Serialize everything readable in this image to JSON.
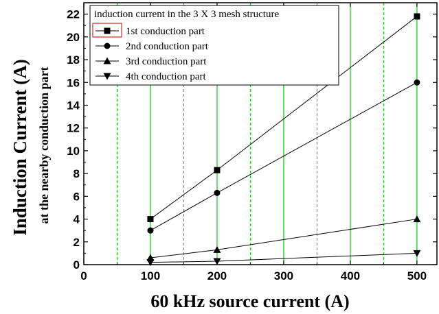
{
  "chart_data": {
    "type": "line",
    "legend_title": "induction current in the 3 X 3 mesh structure",
    "xlabel": "60 kHz source current (A)",
    "ylabel": "Induction Current (A)",
    "ylabel2": "at the nearby conduction part",
    "xlim": [
      0,
      530
    ],
    "ylim": [
      0,
      23
    ],
    "xticks": [
      0,
      100,
      200,
      300,
      400,
      500
    ],
    "xtick_labels": [
      "0",
      "100",
      "200",
      "300",
      "400",
      "500"
    ],
    "yticks": [
      0,
      2,
      4,
      6,
      8,
      10,
      12,
      14,
      16,
      18,
      20,
      22
    ],
    "ytick_labels": [
      "0",
      "2",
      "4",
      "6",
      "8",
      "10",
      "12",
      "14",
      "16",
      "18",
      "20",
      "22"
    ],
    "grid_major_x": [
      100,
      200,
      300,
      400,
      500
    ],
    "grid_minor_x": [
      50,
      150,
      250,
      350,
      450
    ],
    "grid_color": "#00cc00",
    "legend_placement": "top-left",
    "x": [
      100,
      200,
      500
    ],
    "series": [
      {
        "name": "1st conduction part",
        "marker": "square",
        "values": [
          4.0,
          8.3,
          21.8
        ]
      },
      {
        "name": "2nd conduction part",
        "marker": "circle",
        "values": [
          3.0,
          6.3,
          16.0
        ]
      },
      {
        "name": "3rd conduction part",
        "marker": "triangle-up",
        "values": [
          0.6,
          1.3,
          4.0
        ]
      },
      {
        "name": "4th conduction part",
        "marker": "triangle-down",
        "values": [
          0.2,
          0.3,
          1.0
        ]
      }
    ]
  }
}
